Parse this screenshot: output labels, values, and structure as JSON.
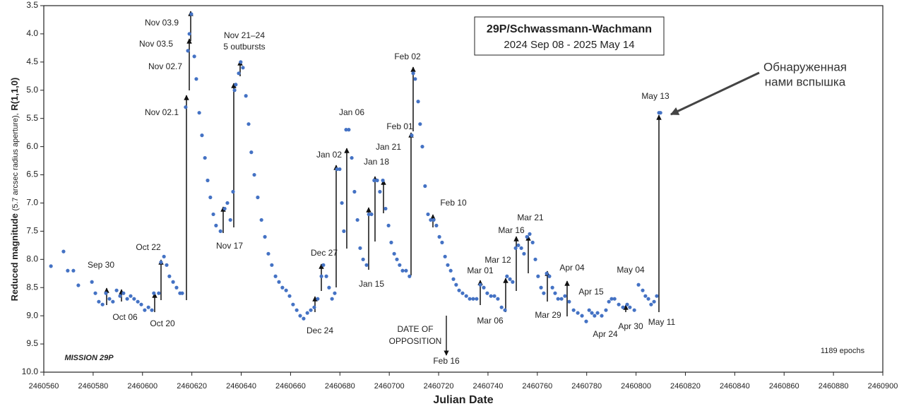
{
  "chart_data": {
    "type": "scatter",
    "title": "29P/Schwassmann-Wachmann",
    "subtitle": "2024 Sep 08 - 2025 May 14",
    "x_label": "Julian Date",
    "y_label_parts": [
      "Reduced magnitude",
      "(5.7 arcsec radius aperture),",
      "R(1,1,0)"
    ],
    "mission": "MISSION 29P",
    "epochs_note": "1189  epochs",
    "xlim": [
      2460560,
      2460900
    ],
    "xticks": [
      2460560,
      2460580,
      2460600,
      2460620,
      2460640,
      2460660,
      2460680,
      2460700,
      2460720,
      2460740,
      2460760,
      2460780,
      2460800,
      2460820,
      2460840,
      2460860,
      2460880,
      2460900
    ],
    "ylim": [
      10,
      3.5
    ],
    "yticks": [
      {
        "value": 3.5,
        "label": "3.5"
      },
      {
        "value": 4,
        "label": "4.0"
      },
      {
        "value": 4.5,
        "label": "4.5"
      },
      {
        "value": 5,
        "label": "5.0"
      },
      {
        "value": 5.5,
        "label": "5.5"
      },
      {
        "value": 6,
        "label": "6.0"
      },
      {
        "value": 6.5,
        "label": "6.5"
      },
      {
        "value": 7,
        "label": "7.0"
      },
      {
        "value": 7.5,
        "label": "7.5"
      },
      {
        "value": 8,
        "label": "8.0"
      },
      {
        "value": 8.5,
        "label": "8.5"
      },
      {
        "value": 9,
        "label": "9.0"
      },
      {
        "value": 9.5,
        "label": "9.5"
      },
      {
        "value": 10,
        "label": "10.0"
      }
    ],
    "grid": false,
    "series": [
      {
        "name": "29P",
        "color": "#4472c4",
        "x": [
          2460562.9,
          2460568.0,
          2460569.7,
          2460572.0,
          2460574.0,
          2460579.5,
          2460580.9,
          2460582.3,
          2460583.8,
          2460585.2,
          2460586.6,
          2460588.0,
          2460589.5,
          2460590.9,
          2460592.3,
          2460593.8,
          2460595.2,
          2460596.6,
          2460598.1,
          2460599.5,
          2460600.9,
          2460602.4,
          2460603.8,
          2460604.6,
          2460606.6,
          2460607.5,
          2460608.7,
          2460609.8,
          2460610.9,
          2460612.4,
          2460613.8,
          2460615.2,
          2460616.1,
          2460617.5,
          2460618.4,
          2460619.0,
          2460619.8,
          2460621.0,
          2460621.8,
          2460623.0,
          2460624.1,
          2460625.3,
          2460626.4,
          2460627.5,
          2460628.7,
          2460629.8,
          2460631.6,
          2460633.3,
          2460634.4,
          2460635.6,
          2460636.7,
          2460637.3,
          2460637.8,
          2460639.0,
          2460639.8,
          2460640.7,
          2460641.9,
          2460643.0,
          2460644.1,
          2460645.3,
          2460646.7,
          2460648.2,
          2460649.6,
          2460651.0,
          2460652.4,
          2460653.9,
          2460655.3,
          2460656.7,
          2460658.2,
          2460659.6,
          2460661.0,
          2460662.5,
          2460663.9,
          2460665.3,
          2460666.8,
          2460668.2,
          2460669.6,
          2460671.0,
          2460672.5,
          2460673.3,
          2460674.5,
          2460675.6,
          2460676.8,
          2460677.9,
          2460678.8,
          2460679.9,
          2460680.8,
          2460681.6,
          2460682.5,
          2460683.6,
          2460684.8,
          2460685.9,
          2460687.1,
          2460688.2,
          2460689.4,
          2460690.8,
          2460691.7,
          2460692.8,
          2460693.9,
          2460695.1,
          2460696.2,
          2460697.4,
          2460698.5,
          2460699.7,
          2460700.8,
          2460702.0,
          2460703.1,
          2460704.2,
          2460705.4,
          2460706.8,
          2460708.2,
          2460709.1,
          2460709.7,
          2460710.5,
          2460711.7,
          2460712.5,
          2460713.4,
          2460714.5,
          2460715.7,
          2460716.8,
          2460718.0,
          2460719.1,
          2460720.3,
          2460721.4,
          2460722.6,
          2460723.7,
          2460724.9,
          2460726.0,
          2460727.1,
          2460728.3,
          2460729.7,
          2460731.2,
          2460732.6,
          2460734.0,
          2460735.4,
          2460736.9,
          2460738.3,
          2460739.7,
          2460741.2,
          2460742.6,
          2460744.0,
          2460745.5,
          2460746.9,
          2460747.7,
          2460748.9,
          2460750.0,
          2460751.2,
          2460752.3,
          2460753.5,
          2460754.6,
          2460755.8,
          2460756.9,
          2460758.1,
          2460759.2,
          2460760.3,
          2460761.5,
          2460762.6,
          2460763.8,
          2460764.9,
          2460766.1,
          2460767.2,
          2460768.4,
          2460769.8,
          2460771.2,
          2460772.9,
          2460774.7,
          2460776.4,
          2460778.1,
          2460779.8,
          2460781.0,
          2460782.1,
          2460783.2,
          2460784.4,
          2460786.1,
          2460787.8,
          2460789.0,
          2460790.1,
          2460791.3,
          2460793.0,
          2460794.7,
          2460796.4,
          2460797.5,
          2460799.3,
          2460801.0,
          2460802.7,
          2460803.8,
          2460805.0,
          2460806.1,
          2460807.3,
          2460808.4,
          2460809.3,
          2460809.9
        ],
        "values": [
          8.12,
          7.86,
          8.2,
          8.2,
          8.46,
          8.4,
          8.6,
          8.75,
          8.8,
          8.6,
          8.7,
          8.75,
          8.55,
          8.65,
          8.6,
          8.7,
          8.65,
          8.7,
          8.75,
          8.8,
          8.9,
          8.85,
          8.9,
          8.6,
          8.6,
          8.05,
          7.95,
          8.1,
          8.3,
          8.4,
          8.5,
          8.6,
          8.6,
          5.3,
          4.3,
          4.0,
          3.65,
          4.4,
          4.8,
          5.4,
          5.8,
          6.2,
          6.6,
          6.9,
          7.2,
          7.4,
          7.5,
          7.1,
          7.0,
          7.3,
          6.8,
          5.0,
          4.9,
          4.7,
          4.5,
          4.6,
          5.1,
          5.6,
          6.1,
          6.5,
          6.9,
          7.3,
          7.6,
          7.9,
          8.1,
          8.3,
          8.4,
          8.5,
          8.55,
          8.65,
          8.8,
          8.9,
          9.0,
          9.05,
          8.95,
          8.9,
          8.85,
          8.7,
          8.3,
          8.1,
          8.3,
          8.5,
          8.7,
          8.6,
          6.4,
          6.4,
          7.0,
          7.5,
          5.7,
          5.7,
          6.2,
          6.8,
          7.3,
          7.8,
          8.0,
          8.1,
          7.2,
          7.2,
          6.6,
          6.6,
          6.8,
          6.6,
          7.1,
          7.4,
          7.7,
          7.9,
          8.0,
          8.1,
          8.2,
          8.2,
          8.3,
          5.8,
          4.7,
          4.8,
          5.2,
          5.6,
          6.0,
          6.7,
          7.2,
          7.3,
          7.3,
          7.4,
          7.6,
          7.7,
          7.95,
          8.1,
          8.2,
          8.35,
          8.45,
          8.55,
          8.6,
          8.65,
          8.7,
          8.7,
          8.7,
          8.45,
          8.5,
          8.6,
          8.65,
          8.65,
          8.7,
          8.85,
          8.9,
          8.3,
          8.35,
          8.4,
          7.8,
          7.75,
          7.8,
          7.9,
          7.6,
          7.55,
          7.7,
          8.0,
          8.3,
          8.5,
          8.6,
          8.25,
          8.3,
          8.5,
          8.6,
          8.7,
          8.7,
          8.65,
          8.75,
          8.9,
          8.95,
          9.0,
          9.1,
          8.9,
          8.95,
          9.0,
          8.95,
          9.0,
          8.9,
          8.75,
          8.7,
          8.7,
          8.8,
          8.85,
          8.8,
          8.85,
          8.9,
          8.45,
          8.55,
          8.65,
          8.7,
          8.8,
          8.75,
          8.65,
          5.4,
          5.4
        ]
      }
    ],
    "annotations": [
      "Sep 30",
      "Oct 06",
      "Oct 20",
      "Oct 22",
      "Nov 02.1",
      "Nov 02.7",
      "Nov 03.5",
      "Nov 03.9",
      "Nov 21–24",
      "5 outbursts",
      "Nov 17",
      "Dec 24",
      "Dec 27",
      "Jan 02",
      "Jan 06",
      "Jan 15",
      "Jan 18",
      "Jan 21",
      "Feb 01",
      "Feb 02",
      "Feb 10",
      "DATE OF",
      "OPPOSITION",
      "Feb 16",
      "Mar 01",
      "Mar 06",
      "Mar 12",
      "Mar 16",
      "Mar 21",
      "Mar 29",
      "Apr 04",
      "Apr 15",
      "Apr 24",
      "Apr 30",
      "May 04",
      "May 11",
      "May 13",
      "Обнаруженная",
      "нами вспышка"
    ]
  }
}
